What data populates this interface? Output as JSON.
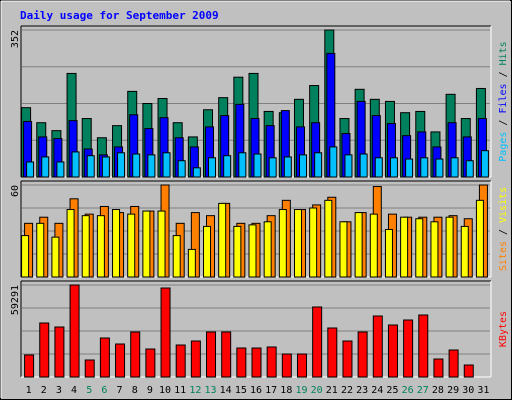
{
  "chart_data": {
    "type": "bar",
    "title": "Daily usage for September 2009",
    "categories": [
      "1",
      "2",
      "3",
      "4",
      "5",
      "6",
      "7",
      "8",
      "9",
      "10",
      "11",
      "12",
      "13",
      "14",
      "15",
      "16",
      "17",
      "18",
      "19",
      "20",
      "21",
      "22",
      "23",
      "24",
      "25",
      "26",
      "27",
      "28",
      "29",
      "30",
      "31"
    ],
    "category_colors": [
      "#000000",
      "#000000",
      "#000000",
      "#000000",
      "#00805c",
      "#00805c",
      "#000000",
      "#000000",
      "#000000",
      "#000000",
      "#000000",
      "#00805c",
      "#00805c",
      "#000000",
      "#000000",
      "#000000",
      "#000000",
      "#000000",
      "#00805c",
      "#00805c",
      "#000000",
      "#000000",
      "#000000",
      "#000000",
      "#000000",
      "#00805c",
      "#00805c",
      "#000000",
      "#000000",
      "#000000",
      "#000000"
    ],
    "legend_separator": " / ",
    "grid": true,
    "panels": [
      {
        "ylim": [
          0,
          352
        ],
        "yticks": [
          352
        ],
        "series": [
          {
            "name": "Hits",
            "color": "#00805c",
            "legend_color": "#00805c",
            "values": [
              166,
              130,
              111,
              248,
              140,
              94,
              123,
              205,
              176,
              188,
              130,
              96,
              161,
              190,
              239,
              248,
              157,
              154,
              186,
              219,
              352,
              140,
              210,
              186,
              181,
              154,
              157,
              108,
              198,
              140,
              212
            ]
          },
          {
            "name": "Files",
            "color": "#0000ff",
            "legend_color": "#0000ff",
            "values": [
              133,
              96,
              92,
              135,
              67,
              53,
              72,
              149,
              116,
              142,
              94,
              72,
              120,
              147,
              174,
              140,
              123,
              159,
              120,
              130,
              296,
              104,
              181,
              147,
              128,
              99,
              108,
              72,
              130,
              96,
              140
            ]
          },
          {
            "name": "Pages",
            "color": "#00c0ff",
            "legend_color": "#00c0ff",
            "values": [
              36,
              48,
              36,
              60,
              51,
              48,
              58,
              55,
              53,
              58,
              39,
              22,
              46,
              51,
              58,
              55,
              46,
              48,
              53,
              58,
              72,
              53,
              55,
              46,
              46,
              43,
              46,
              43,
              46,
              39,
              63
            ]
          }
        ]
      },
      {
        "ylim": [
          0,
          60
        ],
        "yticks": [
          60
        ],
        "series": [
          {
            "name": "Visits",
            "color": "#ff8000",
            "legend_color": "#ffff00",
            "values": [
              35,
              39,
              35,
              51,
              41,
              46,
              42,
              46,
              43,
              60,
              35,
              42,
              40,
              48,
              35,
              35,
              40,
              50,
              44,
              47,
              52,
              36,
              42,
              59,
              41,
              39,
              39,
              39,
              40,
              38,
              60
            ]
          },
          {
            "name": "Sites",
            "color": "#ffff00",
            "legend_color": "#ff8000",
            "values": [
              27,
              35,
              26,
              44,
              40,
              40,
              44,
              41,
              43,
              43,
              27,
              18,
              33,
              48,
              33,
              34,
              36,
              44,
              44,
              45,
              50,
              36,
              42,
              41,
              31,
              39,
              38,
              36,
              39,
              33,
              50
            ]
          }
        ]
      },
      {
        "ylim": [
          0,
          59291
        ],
        "yticks": [
          59291
        ],
        "series": [
          {
            "name": "KBytes",
            "color": "#ff0000",
            "legend_color": "#ff0000",
            "values": [
              14178,
              34800,
              32224,
              59291,
              10956,
              25135,
              21267,
              29000,
              18045,
              57358,
              20623,
              23201,
              29000,
              29000,
              18690,
              18690,
              19334,
              14823,
              14823,
              45114,
              31580,
              23201,
              29000,
              39313,
              33513,
              36735,
              39958,
              11600,
              17401,
              7734,
              null
            ]
          }
        ]
      }
    ]
  }
}
